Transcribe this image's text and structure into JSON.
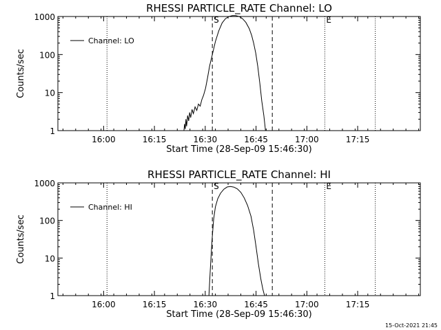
{
  "footer_timestamp": "15-Oct-2021 21:45",
  "chart_data": [
    {
      "type": "line",
      "title": "RHESSI PARTICLE_RATE Channel: LO",
      "xlabel": "Start Time (28-Sep-09 15:46:30)",
      "ylabel": "Counts/sec",
      "yscale": "log",
      "ylim": [
        1,
        1000
      ],
      "xlim_minutes_from_start": [
        0,
        107
      ],
      "x_ticks": [
        "16:00",
        "16:15",
        "16:30",
        "16:45",
        "17:00",
        "17:15"
      ],
      "x_tick_minutes": [
        13.5,
        28.5,
        43.5,
        58.5,
        73.5,
        88.5
      ],
      "y_ticks": [
        "1",
        "10",
        "100",
        "1000"
      ],
      "y_tick_values": [
        1,
        10,
        100,
        1000
      ],
      "legend": "Channel: LO",
      "grid": false,
      "markers": [
        {
          "minute": 14.5,
          "style": "dotted",
          "label": ""
        },
        {
          "minute": 45.6,
          "style": "dashed",
          "label": "S"
        },
        {
          "minute": 63.3,
          "style": "dashed",
          "label": ""
        },
        {
          "minute": 78.8,
          "style": "dotted",
          "label": "E"
        },
        {
          "minute": 93.7,
          "style": "dotted",
          "label": ""
        }
      ],
      "series": [
        {
          "x": [
            37.2,
            37.4,
            37.6,
            37.8,
            38.0,
            38.3,
            38.6,
            38.9,
            39.2,
            39.6,
            40.0,
            40.5,
            41.0,
            41.5,
            42.0,
            42.5,
            43.0,
            43.6,
            44.2,
            44.8,
            45.6,
            46.5,
            47.5,
            48.5,
            49.5,
            50.5,
            51.5,
            52.5,
            53.5,
            54.5,
            55.5,
            56.5,
            57.2,
            57.8,
            58.4,
            59.0,
            59.6,
            60.2,
            60.8,
            61.3
          ],
          "y": [
            1.0,
            1.5,
            1.1,
            2.0,
            1.3,
            2.5,
            1.8,
            3.0,
            2.2,
            3.6,
            2.8,
            4.2,
            3.4,
            5.0,
            4.4,
            6.5,
            8.5,
            13,
            25,
            50,
            100,
            220,
            420,
            680,
            880,
            1000,
            1050,
            1050,
            1000,
            880,
            700,
            480,
            320,
            200,
            110,
            50,
            18,
            6,
            2.5,
            1.0
          ]
        }
      ]
    },
    {
      "type": "line",
      "title": "RHESSI PARTICLE_RATE Channel: HI",
      "xlabel": "Start Time (28-Sep-09 15:46:30)",
      "ylabel": "Counts/sec",
      "yscale": "log",
      "ylim": [
        1,
        1000
      ],
      "xlim_minutes_from_start": [
        0,
        107
      ],
      "x_ticks": [
        "16:00",
        "16:15",
        "16:30",
        "16:45",
        "17:00",
        "17:15"
      ],
      "x_tick_minutes": [
        13.5,
        28.5,
        43.5,
        58.5,
        73.5,
        88.5
      ],
      "y_ticks": [
        "1",
        "10",
        "100",
        "1000"
      ],
      "y_tick_values": [
        1,
        10,
        100,
        1000
      ],
      "legend": "Channel: HI",
      "grid": false,
      "markers": [
        {
          "minute": 14.5,
          "style": "dotted",
          "label": ""
        },
        {
          "minute": 45.6,
          "style": "dashed",
          "label": "S"
        },
        {
          "minute": 63.3,
          "style": "dashed",
          "label": ""
        },
        {
          "minute": 78.8,
          "style": "dotted",
          "label": "E"
        },
        {
          "minute": 93.7,
          "style": "dotted",
          "label": ""
        }
      ],
      "series": [
        {
          "x": [
            44.6,
            45.0,
            45.5,
            46.0,
            46.5,
            47.2,
            48.0,
            49.0,
            50.0,
            51.0,
            52.0,
            53.0,
            54.0,
            55.0,
            56.0,
            57.0,
            57.8,
            58.5,
            59.2,
            59.9,
            60.5,
            61.0
          ],
          "y": [
            1.0,
            5,
            30,
            110,
            230,
            380,
            530,
            680,
            780,
            800,
            770,
            690,
            560,
            400,
            250,
            130,
            55,
            20,
            7,
            2.8,
            1.5,
            1.0
          ]
        }
      ]
    }
  ]
}
